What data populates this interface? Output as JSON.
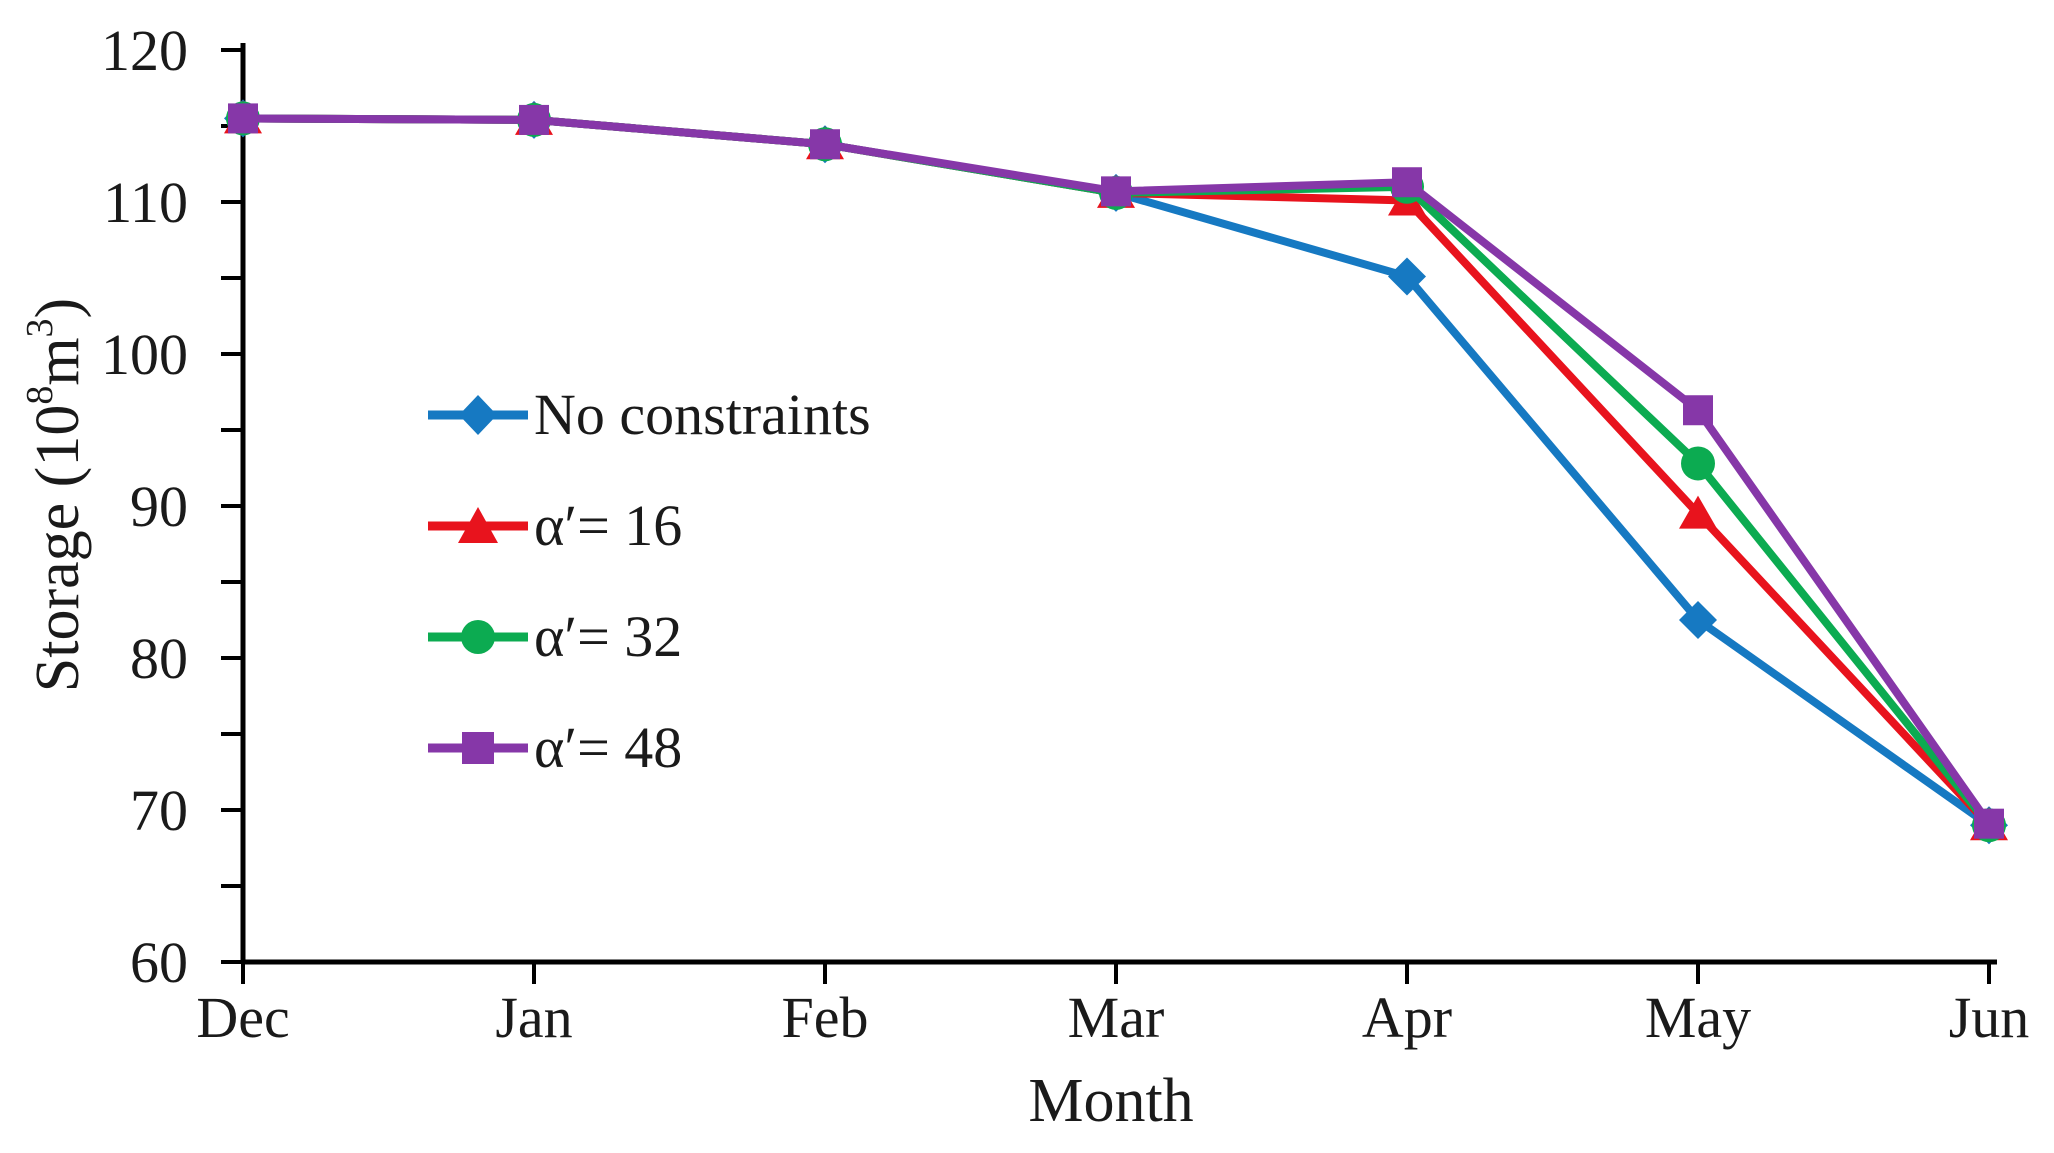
{
  "figure": {
    "background": "#ffffff",
    "text_color": "#1a1a1a",
    "axis_color": "#000000"
  },
  "chart_data": {
    "type": "line",
    "title": "",
    "xlabel": "Month",
    "ylabel": "Storage (10⁸m³)",
    "ylabel_parts": {
      "prefix": "Storage (10",
      "exp1": "8",
      "mid": "m",
      "exp2": "3",
      "suffix": ")"
    },
    "categories": [
      "Dec",
      "Jan",
      "Feb",
      "Mar",
      "Apr",
      "May",
      "Jun"
    ],
    "ylim": [
      60,
      120
    ],
    "yticks": [
      60,
      70,
      80,
      90,
      100,
      110,
      120
    ],
    "minor_ytick_step": 5,
    "grid": false,
    "legend_position": "inside-left",
    "series": [
      {
        "name": "No constraints",
        "marker": "diamond",
        "color": "#1679c2",
        "values": [
          115.5,
          115.4,
          113.8,
          110.6,
          105.1,
          82.5,
          69.0
        ]
      },
      {
        "name": "α′= 16",
        "marker": "triangle",
        "color": "#e8131d",
        "values": [
          115.5,
          115.4,
          113.8,
          110.6,
          110.1,
          89.5,
          69.0
        ]
      },
      {
        "name": "α′= 32",
        "marker": "circle",
        "color": "#0cab51",
        "values": [
          115.5,
          115.4,
          113.8,
          110.6,
          111.0,
          92.8,
          69.0
        ]
      },
      {
        "name": "α′= 48",
        "marker": "square",
        "color": "#8637a8",
        "values": [
          115.5,
          115.4,
          113.8,
          110.7,
          111.3,
          96.3,
          69.1
        ]
      }
    ]
  }
}
